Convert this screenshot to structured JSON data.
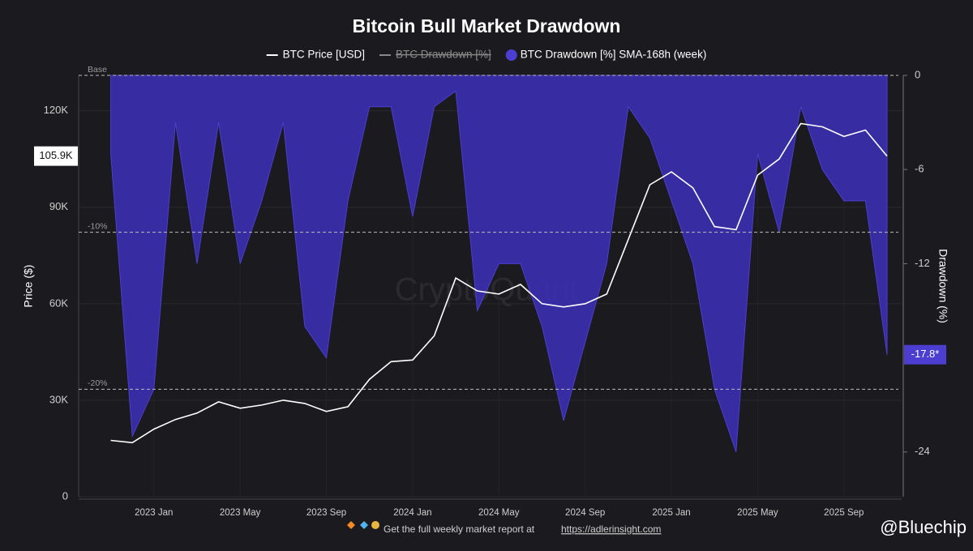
{
  "chart_data": {
    "type": "line-area",
    "title": "Bitcoin Bull Market Drawdown",
    "x": [
      "2022-11",
      "2022-12",
      "2023-01",
      "2023-02",
      "2023-03",
      "2023-04",
      "2023-05",
      "2023-06",
      "2023-07",
      "2023-08",
      "2023-09",
      "2023-10",
      "2023-11",
      "2023-12",
      "2024-01",
      "2024-02",
      "2024-03",
      "2024-04",
      "2024-05",
      "2024-06",
      "2024-07",
      "2024-08",
      "2024-09",
      "2024-10",
      "2024-11",
      "2024-12",
      "2025-01",
      "2025-02",
      "2025-03",
      "2025-04",
      "2025-05",
      "2025-06",
      "2025-07",
      "2025-08",
      "2025-09",
      "2025-10",
      "2025-11"
    ],
    "xlim": [
      "2022-10",
      "2025-11"
    ],
    "xticks": [
      {
        "value": "2023-01",
        "label": "2023 Jan"
      },
      {
        "value": "2023-05",
        "label": "2023 May"
      },
      {
        "value": "2023-09",
        "label": "2023 Sep"
      },
      {
        "value": "2024-01",
        "label": "2024 Jan"
      },
      {
        "value": "2024-05",
        "label": "2024 May"
      },
      {
        "value": "2024-09",
        "label": "2024 Sep"
      },
      {
        "value": "2025-01",
        "label": "2025 Jan"
      },
      {
        "value": "2025-05",
        "label": "2025 May"
      },
      {
        "value": "2025-09",
        "label": "2025 Sep"
      }
    ],
    "ylabel": "Price ($)",
    "ylim": [
      0,
      131000
    ],
    "yticks": [
      0,
      {
        "value": 30000,
        "label": "30K"
      },
      {
        "value": 60000,
        "label": "60K"
      },
      {
        "value": 90000,
        "label": "90K"
      },
      {
        "value": 120000,
        "label": "120K"
      }
    ],
    "y2label": "Drawdown (%)",
    "y2lim": [
      -26.85,
      0
    ],
    "y2ticks": [
      0,
      -6,
      -12,
      -24
    ],
    "grid": true,
    "reference_lines": [
      {
        "value": 0,
        "label": "Base"
      },
      {
        "value": -10,
        "label": "-10%"
      },
      {
        "value": -20,
        "label": "-20%"
      }
    ],
    "series": [
      {
        "name": "BTC Price [USD]",
        "kind": "line",
        "color": "#ffffff",
        "values": [
          17500,
          16800,
          21000,
          24000,
          26000,
          29500,
          27500,
          28500,
          30000,
          29000,
          26500,
          28000,
          36500,
          42000,
          42500,
          50000,
          68000,
          64000,
          63000,
          66000,
          60000,
          59000,
          60000,
          63000,
          80000,
          97000,
          101000,
          96000,
          84000,
          83000,
          100000,
          105000,
          116000,
          115000,
          112000,
          114000,
          105900
        ],
        "current_label": {
          "value": 105900,
          "label": "105.9K"
        }
      },
      {
        "name": "BTC Drawdown [%]",
        "kind": "hidden",
        "color": "#8a8a8a",
        "axis": "y2"
      },
      {
        "name": "BTC Drawdown [%] SMA-168h (week)",
        "kind": "area",
        "color": "#3b2fb0",
        "axis": "y2",
        "values": [
          -5,
          -23,
          -20,
          -3,
          -12,
          -3,
          -12,
          -8,
          -3,
          -16,
          -18,
          -8,
          -2,
          -2,
          -9,
          -2,
          -1,
          -15,
          -12,
          -12,
          -16,
          -22,
          -17,
          -12,
          -2,
          -4,
          -8,
          -12,
          -20,
          -24,
          -5,
          -10,
          -2,
          -6,
          -8,
          -8,
          -17.8
        ],
        "current_label": {
          "value": -17.8,
          "label": "-17.8*"
        }
      }
    ],
    "watermark": "CryptoQuant",
    "footer": {
      "text": "Get the full weekly market report at",
      "link": "https://adlerinsight.com",
      "handle": "@Bluechip"
    }
  }
}
